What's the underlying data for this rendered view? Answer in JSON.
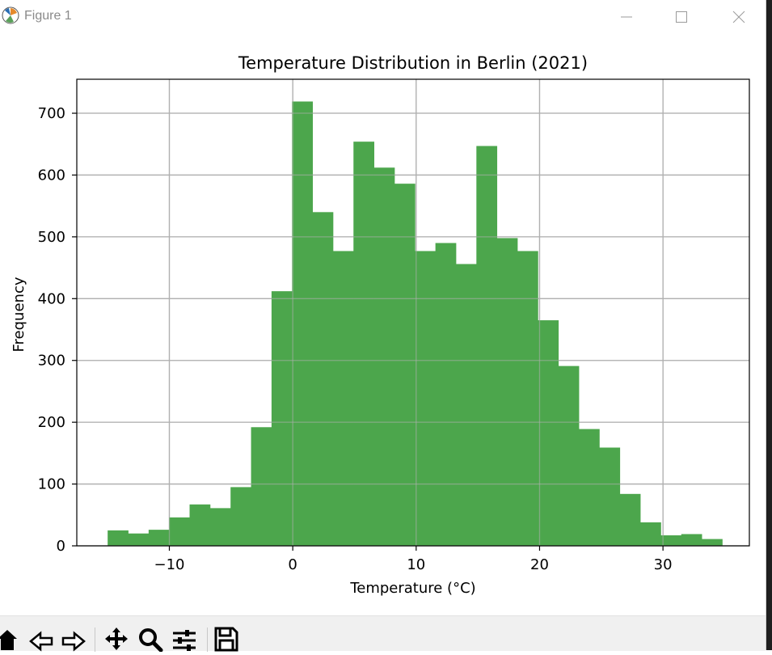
{
  "window": {
    "title": "Figure 1"
  },
  "colors": {
    "bar": "#4ca64c",
    "grid": "#b0b0b0",
    "axes": "#000000"
  },
  "toolbar": {
    "tools": [
      "home-icon",
      "back-icon",
      "forward-icon",
      "pan-icon",
      "zoom-icon",
      "configure-subplots-icon",
      "save-icon"
    ]
  },
  "chart_data": {
    "type": "bar",
    "title": "Temperature Distribution in Berlin (2021)",
    "xlabel": "Temperature (°C)",
    "ylabel": "Frequency",
    "xlim": [
      -17.5,
      37.0
    ],
    "ylim": [
      0,
      755
    ],
    "grid": true,
    "xticks": [
      -10,
      0,
      10,
      20,
      30
    ],
    "xtick_labels": [
      "−10",
      "0",
      "10",
      "20",
      "30"
    ],
    "yticks": [
      0,
      100,
      200,
      300,
      400,
      500,
      600,
      700
    ],
    "ytick_labels": [
      "0",
      "100",
      "200",
      "300",
      "400",
      "500",
      "600",
      "700"
    ],
    "bin_edges": [
      -15.0,
      -13.34,
      -11.68,
      -10.02,
      -8.36,
      -6.7,
      -5.04,
      -3.38,
      -1.72,
      -0.06,
      1.6,
      3.26,
      4.92,
      6.58,
      8.24,
      9.9,
      11.56,
      13.22,
      14.88,
      16.54,
      18.2,
      19.86,
      21.52,
      23.18,
      24.84,
      26.5,
      28.16,
      29.82,
      31.48,
      33.14,
      34.8
    ],
    "values": [
      25,
      20,
      26,
      46,
      67,
      61,
      95,
      192,
      412,
      719,
      540,
      477,
      654,
      612,
      586,
      477,
      490,
      456,
      647,
      498,
      477,
      365,
      291,
      189,
      159,
      84,
      38,
      17,
      19,
      11
    ]
  }
}
